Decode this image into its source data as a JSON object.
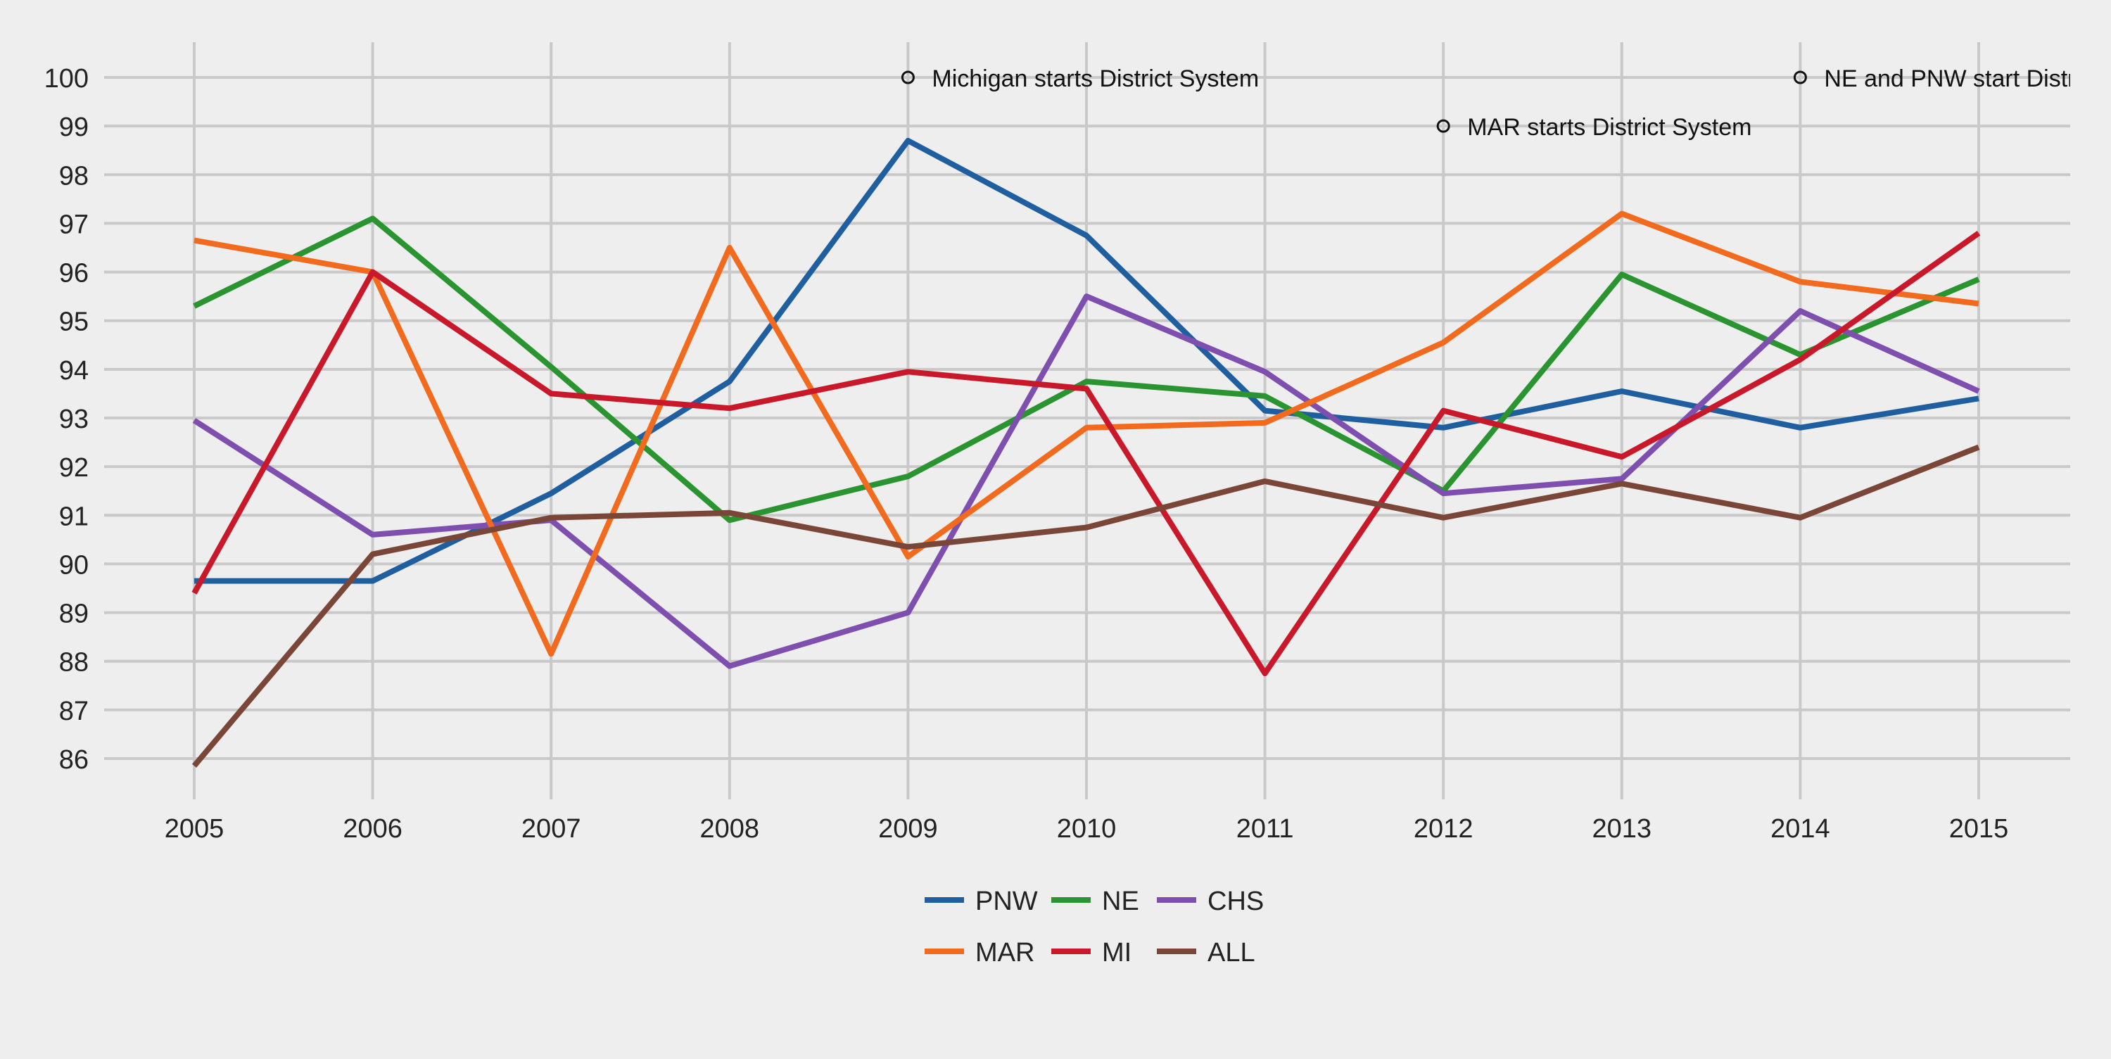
{
  "chart_data": {
    "type": "line",
    "title": "",
    "xlabel": "",
    "ylabel": "",
    "x": [
      2005,
      2006,
      2007,
      2008,
      2009,
      2010,
      2011,
      2012,
      2013,
      2014,
      2015
    ],
    "xlim": [
      2004.5,
      2016.0
    ],
    "ylim": [
      85.2,
      100.7
    ],
    "x_ticks": [
      "2005",
      "2006",
      "2007",
      "2008",
      "2009",
      "2010",
      "2011",
      "2012",
      "2013",
      "2014",
      "2015"
    ],
    "y_ticks": [
      86,
      87,
      88,
      89,
      90,
      91,
      92,
      93,
      94,
      95,
      96,
      97,
      98,
      99,
      100
    ],
    "grid": true,
    "legend_position": "bottom-center",
    "series": [
      {
        "name": "PNW",
        "color": "#1f5fa0",
        "values": [
          89.65,
          89.65,
          91.45,
          93.75,
          98.7,
          96.75,
          93.15,
          92.8,
          93.55,
          92.8,
          93.4
        ]
      },
      {
        "name": "NE",
        "color": "#2a9430",
        "values": [
          95.3,
          97.1,
          94.05,
          90.9,
          91.8,
          93.75,
          93.45,
          91.5,
          95.95,
          94.3,
          95.85
        ]
      },
      {
        "name": "CHS",
        "color": "#7e4fae",
        "values": [
          92.95,
          90.6,
          90.9,
          87.9,
          89.0,
          95.5,
          93.95,
          91.45,
          91.75,
          95.2,
          93.55
        ]
      },
      {
        "name": "MAR",
        "color": "#f26a1e",
        "values": [
          96.65,
          96.0,
          88.15,
          96.5,
          90.15,
          92.8,
          92.9,
          94.55,
          97.2,
          95.8,
          95.35
        ]
      },
      {
        "name": "MI",
        "color": "#c8182a",
        "values": [
          89.4,
          96.0,
          93.5,
          93.2,
          93.95,
          93.6,
          87.75,
          93.15,
          92.2,
          94.2,
          96.8
        ]
      },
      {
        "name": "ALL",
        "color": "#7a4638",
        "values": [
          85.85,
          90.2,
          90.95,
          91.05,
          90.35,
          90.75,
          91.7,
          90.95,
          91.65,
          90.95,
          92.4
        ]
      }
    ],
    "annotations": [
      {
        "x": 2009,
        "y": 100,
        "text": "Michigan starts District System"
      },
      {
        "x": 2012,
        "y": 99,
        "text": "MAR starts District System"
      },
      {
        "x": 2014,
        "y": 100,
        "text": "NE and PNW start District System"
      }
    ]
  }
}
